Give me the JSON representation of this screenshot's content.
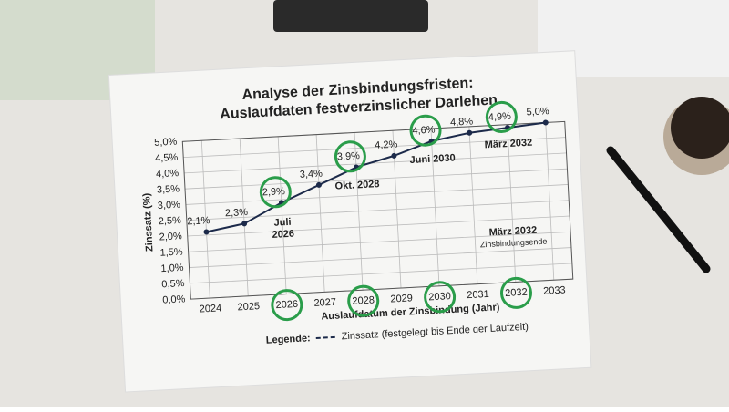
{
  "chart_data": {
    "type": "line",
    "title": [
      "Analyse der Zinsbindungsfristen:",
      "Auslaufdaten festverzinslicher Darlehen"
    ],
    "x": [
      2024,
      2025,
      2026,
      2027,
      2028,
      2029,
      2030,
      2031,
      2032,
      2033
    ],
    "series": [
      {
        "name": "Zinssatz (festgelegt bis Ende der Laufzeit)",
        "color": "#1c2a4a",
        "values": [
          2.1,
          2.3,
          2.9,
          3.4,
          3.9,
          4.2,
          4.6,
          4.8,
          4.9,
          5.0
        ],
        "value_labels": [
          "2,1%",
          "2,3%",
          "2,9%",
          "3,4%",
          "3,9%",
          "4,2%",
          "4,6%",
          "4,8%",
          "4,9%",
          "5,0%"
        ]
      }
    ],
    "xlim": [
      2023.5,
      2033.5
    ],
    "xticks": [
      2024,
      2025,
      2026,
      2027,
      2028,
      2029,
      2030,
      2031,
      2032,
      2033
    ],
    "ylim": [
      0,
      5.0
    ],
    "yticks": [
      {
        "value": 0,
        "label": "0,0%"
      },
      {
        "value": 0.5,
        "label": "0,5%"
      },
      {
        "value": 1.0,
        "label": "1,0%"
      },
      {
        "value": 1.5,
        "label": "1,5%"
      },
      {
        "value": 2.0,
        "label": "2,0%"
      },
      {
        "value": 2.5,
        "label": "2,5%"
      },
      {
        "value": 3.0,
        "label": "3,0%"
      },
      {
        "value": 3.5,
        "label": "3,5%"
      },
      {
        "value": 4.0,
        "label": "4,0%"
      },
      {
        "value": 4.5,
        "label": "4,5%"
      },
      {
        "value": 5.0,
        "label": "5,0%"
      }
    ],
    "xlabel": "Auslaufdatum der Zinsbindung (Jahr)",
    "ylabel": "Zinssatz (%)",
    "legend_title": "Legende:",
    "grid": true,
    "annotations": [
      [
        "Juli",
        "2026"
      ],
      [
        "Okt. 2028"
      ],
      [
        "Juni 2030"
      ],
      [
        "März 2032"
      ],
      [
        "März 2032",
        "Zinsbindungsende"
      ]
    ]
  }
}
